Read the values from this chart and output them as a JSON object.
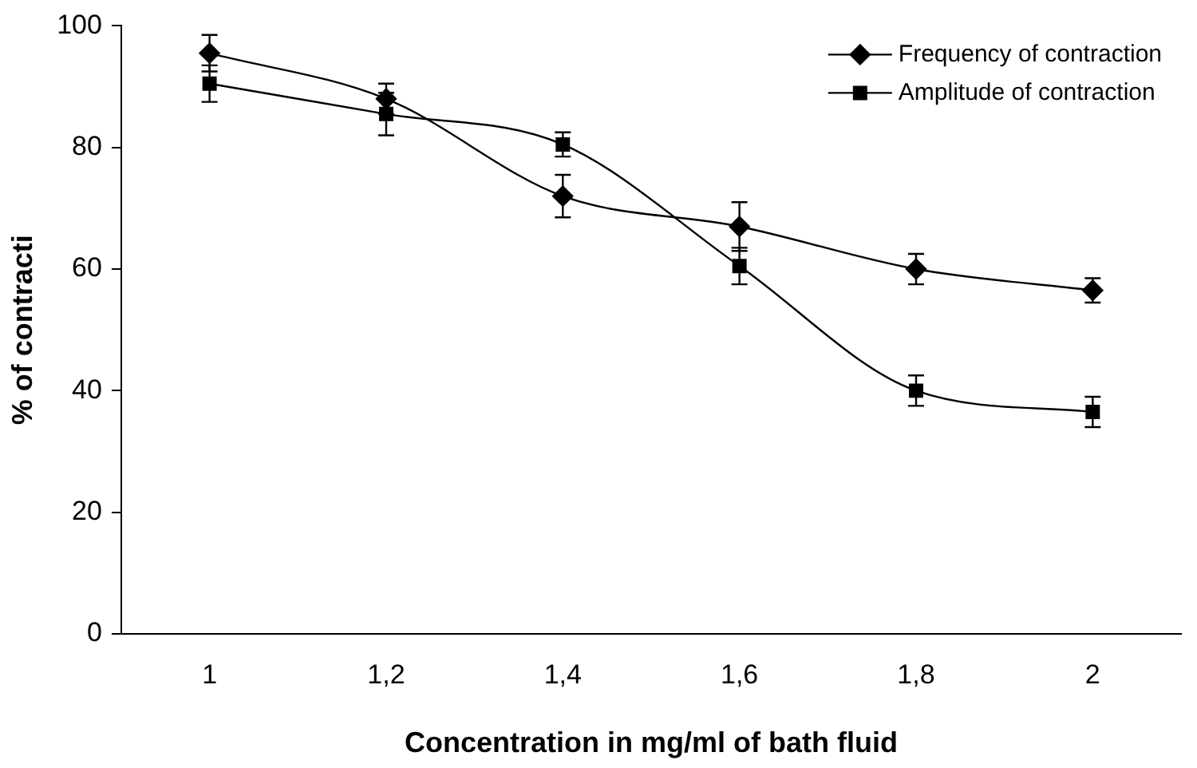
{
  "chart_data": {
    "type": "line",
    "xlabel": "Concentration in mg/ml of bath fluid",
    "ylabel": "% of contracti",
    "categories": [
      "1",
      "1,2",
      "1,4",
      "1,6",
      "1,8",
      "2"
    ],
    "series": [
      {
        "name": "Frequency of contraction",
        "color": "#000000",
        "marker": "diamond",
        "values": [
          95.5,
          88,
          72,
          67,
          60,
          56.5
        ],
        "errors": [
          3,
          2.5,
          3.5,
          4,
          2.5,
          2
        ]
      },
      {
        "name": "Amplitude of contraction",
        "color": "#000000",
        "marker": "square",
        "values": [
          90.5,
          85.5,
          80.5,
          60.5,
          40,
          36.5
        ],
        "errors": [
          3,
          3.5,
          2,
          3,
          2.5,
          2.5
        ]
      }
    ],
    "ylim": [
      0,
      100
    ],
    "yticks": [
      0,
      20,
      40,
      60,
      80,
      100
    ],
    "grid": false,
    "legend": "top right",
    "line_style": "solid"
  }
}
